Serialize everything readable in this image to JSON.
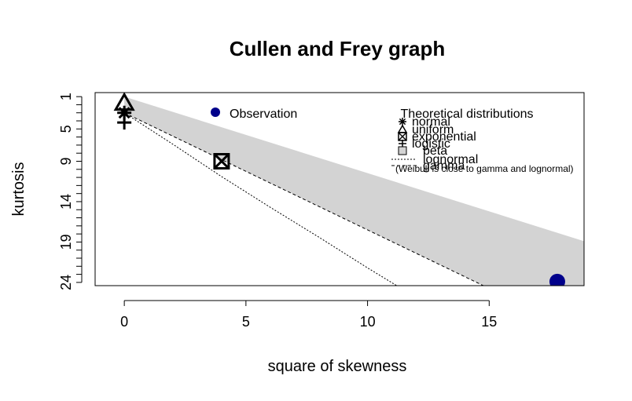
{
  "chart_data": {
    "type": "scatter",
    "title": "Cullen and Frey graph",
    "xlabel": "square of skewness",
    "ylabel": "kurtosis",
    "xlim": [
      -1.2,
      18.9
    ],
    "ylim": [
      24.4,
      0.5
    ],
    "x_ticks": [
      0,
      5,
      10,
      15
    ],
    "y_ticks": [
      1,
      5,
      9,
      14,
      19,
      24
    ],
    "observation": {
      "x": 17.8,
      "y": 23.9,
      "color": "#00008B"
    },
    "bootstrap_or_markers": [],
    "theoretical_points": [
      {
        "name": "normal",
        "x": 0,
        "y": 3,
        "marker": "asterisk"
      },
      {
        "name": "uniform",
        "x": 0,
        "y": 1.8,
        "marker": "triangle"
      },
      {
        "name": "exponential",
        "x": 4,
        "y": 9,
        "marker": "boxed-x"
      },
      {
        "name": "logistic",
        "x": 0,
        "y": 4.2,
        "marker": "plus"
      }
    ],
    "beta_region": {
      "upper": [
        [
          0,
          1
        ],
        [
          18.9,
          18.9
        ]
      ],
      "lower": [
        [
          0,
          3
        ],
        [
          14.76,
          24.4
        ],
        [
          18.9,
          24.4
        ]
      ],
      "color": "#D3D3D3"
    },
    "lognormal_line": [
      [
        0,
        3
      ],
      [
        2,
        6.9
      ],
      [
        4,
        10.9
      ],
      [
        6,
        14.7
      ],
      [
        8,
        18.4
      ],
      [
        10,
        22.2
      ],
      [
        11.2,
        24.4
      ]
    ],
    "gamma_line": [
      [
        0,
        3
      ],
      [
        14.76,
        24.4
      ]
    ],
    "legend": {
      "observation_label": "Observation",
      "theoretical_title": "Theoretical distributions",
      "items": [
        {
          "label": "normal",
          "marker": "asterisk"
        },
        {
          "label": "uniform",
          "marker": "triangle"
        },
        {
          "label": "exponential",
          "marker": "boxed-x"
        },
        {
          "label": "logistic",
          "marker": "plus"
        },
        {
          "label": "beta",
          "marker": "gray-square"
        },
        {
          "label": "lognormal",
          "marker": "dotted-line"
        },
        {
          "label": "gamma",
          "marker": "dashed-line"
        }
      ],
      "note": "(Weibull is close to gamma and lognormal)"
    }
  }
}
